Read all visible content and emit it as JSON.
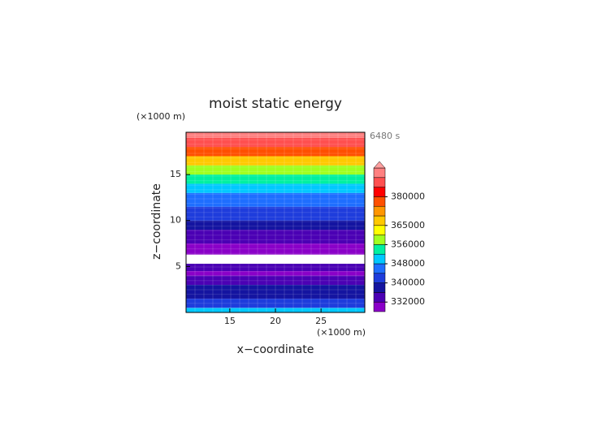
{
  "chart_data": {
    "type": "contour",
    "title": "moist static energy",
    "x_label": "x−coordinate",
    "y_label": "z−coordinate",
    "x_unit": "(×1000 m)",
    "y_unit": "(×1000 m)",
    "time_label": "6480 s",
    "xlim": [
      10.2,
      29.8
    ],
    "xticks": [
      15,
      20,
      25
    ],
    "ylim": [
      0,
      19.6
    ],
    "yticks": [
      5,
      10,
      15
    ],
    "z": [
      0,
      0.5,
      1.5,
      3,
      4,
      4.5,
      5.3,
      6.3,
      7.5,
      9,
      10,
      11.5,
      13,
      14,
      15,
      16,
      17,
      18,
      19,
      19.6
    ],
    "values": [
      349000,
      342000,
      337000,
      333000,
      330000,
      334000,
      null,
      330000,
      334000,
      338000,
      341000,
      345000,
      350000,
      354000,
      358000,
      367000,
      378000,
      386000,
      392000
    ],
    "levels": [
      328000,
      332000,
      336000,
      340000,
      344000,
      348000,
      352000,
      356000,
      360000,
      365000,
      370000,
      375000,
      380000,
      385000,
      390000,
      395000
    ],
    "colors": [
      "#8a00c8",
      "#4b00b4",
      "#1414a0",
      "#1e3cdc",
      "#1e6eff",
      "#00c8ff",
      "#00f0a0",
      "#a0ff20",
      "#ffff00",
      "#ffc800",
      "#ff9600",
      "#ff5000",
      "#ff0000",
      "#ff5050",
      "#ff8080"
    ],
    "extend_color": "#ffa0a0",
    "colorbar_ticks": [
      332000,
      340000,
      348000,
      356000,
      365000,
      380000
    ]
  }
}
